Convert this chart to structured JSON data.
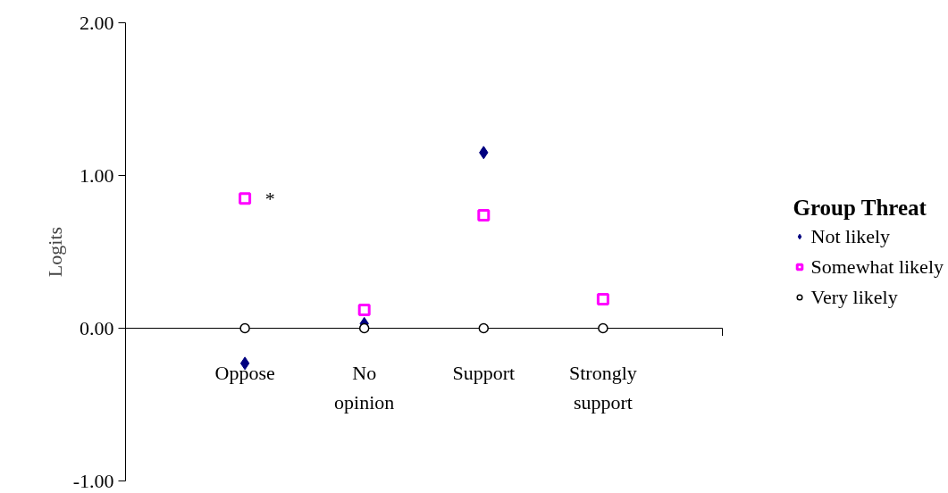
{
  "chart_data": {
    "type": "scatter",
    "ylabel": "Logits",
    "legend_title": "Group Threat",
    "legend": "right",
    "grid": false,
    "categories": [
      "Oppose",
      "No opinion",
      "Support",
      "Strongly support"
    ],
    "ylim": [
      -1,
      2
    ],
    "yticks": [
      {
        "value": -1,
        "label": "-1.00"
      },
      {
        "value": 0,
        "label": "0.00"
      },
      {
        "value": 1,
        "label": "1.00"
      },
      {
        "value": 2,
        "label": "2.00"
      }
    ],
    "series": [
      {
        "name": "Not likely",
        "color": "#000080",
        "marker": "diamond",
        "values": [
          -0.23,
          0.03,
          1.15,
          null
        ]
      },
      {
        "name": "Somewhat likely",
        "color": "#ff00ff",
        "marker": "square",
        "values": [
          0.85,
          0.12,
          0.74,
          0.19
        ]
      },
      {
        "name": "Very likely",
        "color": "#000000",
        "marker": "circle",
        "values": [
          0,
          0,
          0,
          0
        ]
      }
    ],
    "annotations": [
      {
        "text": "*",
        "x": "Oppose",
        "y": 0.85
      }
    ]
  }
}
